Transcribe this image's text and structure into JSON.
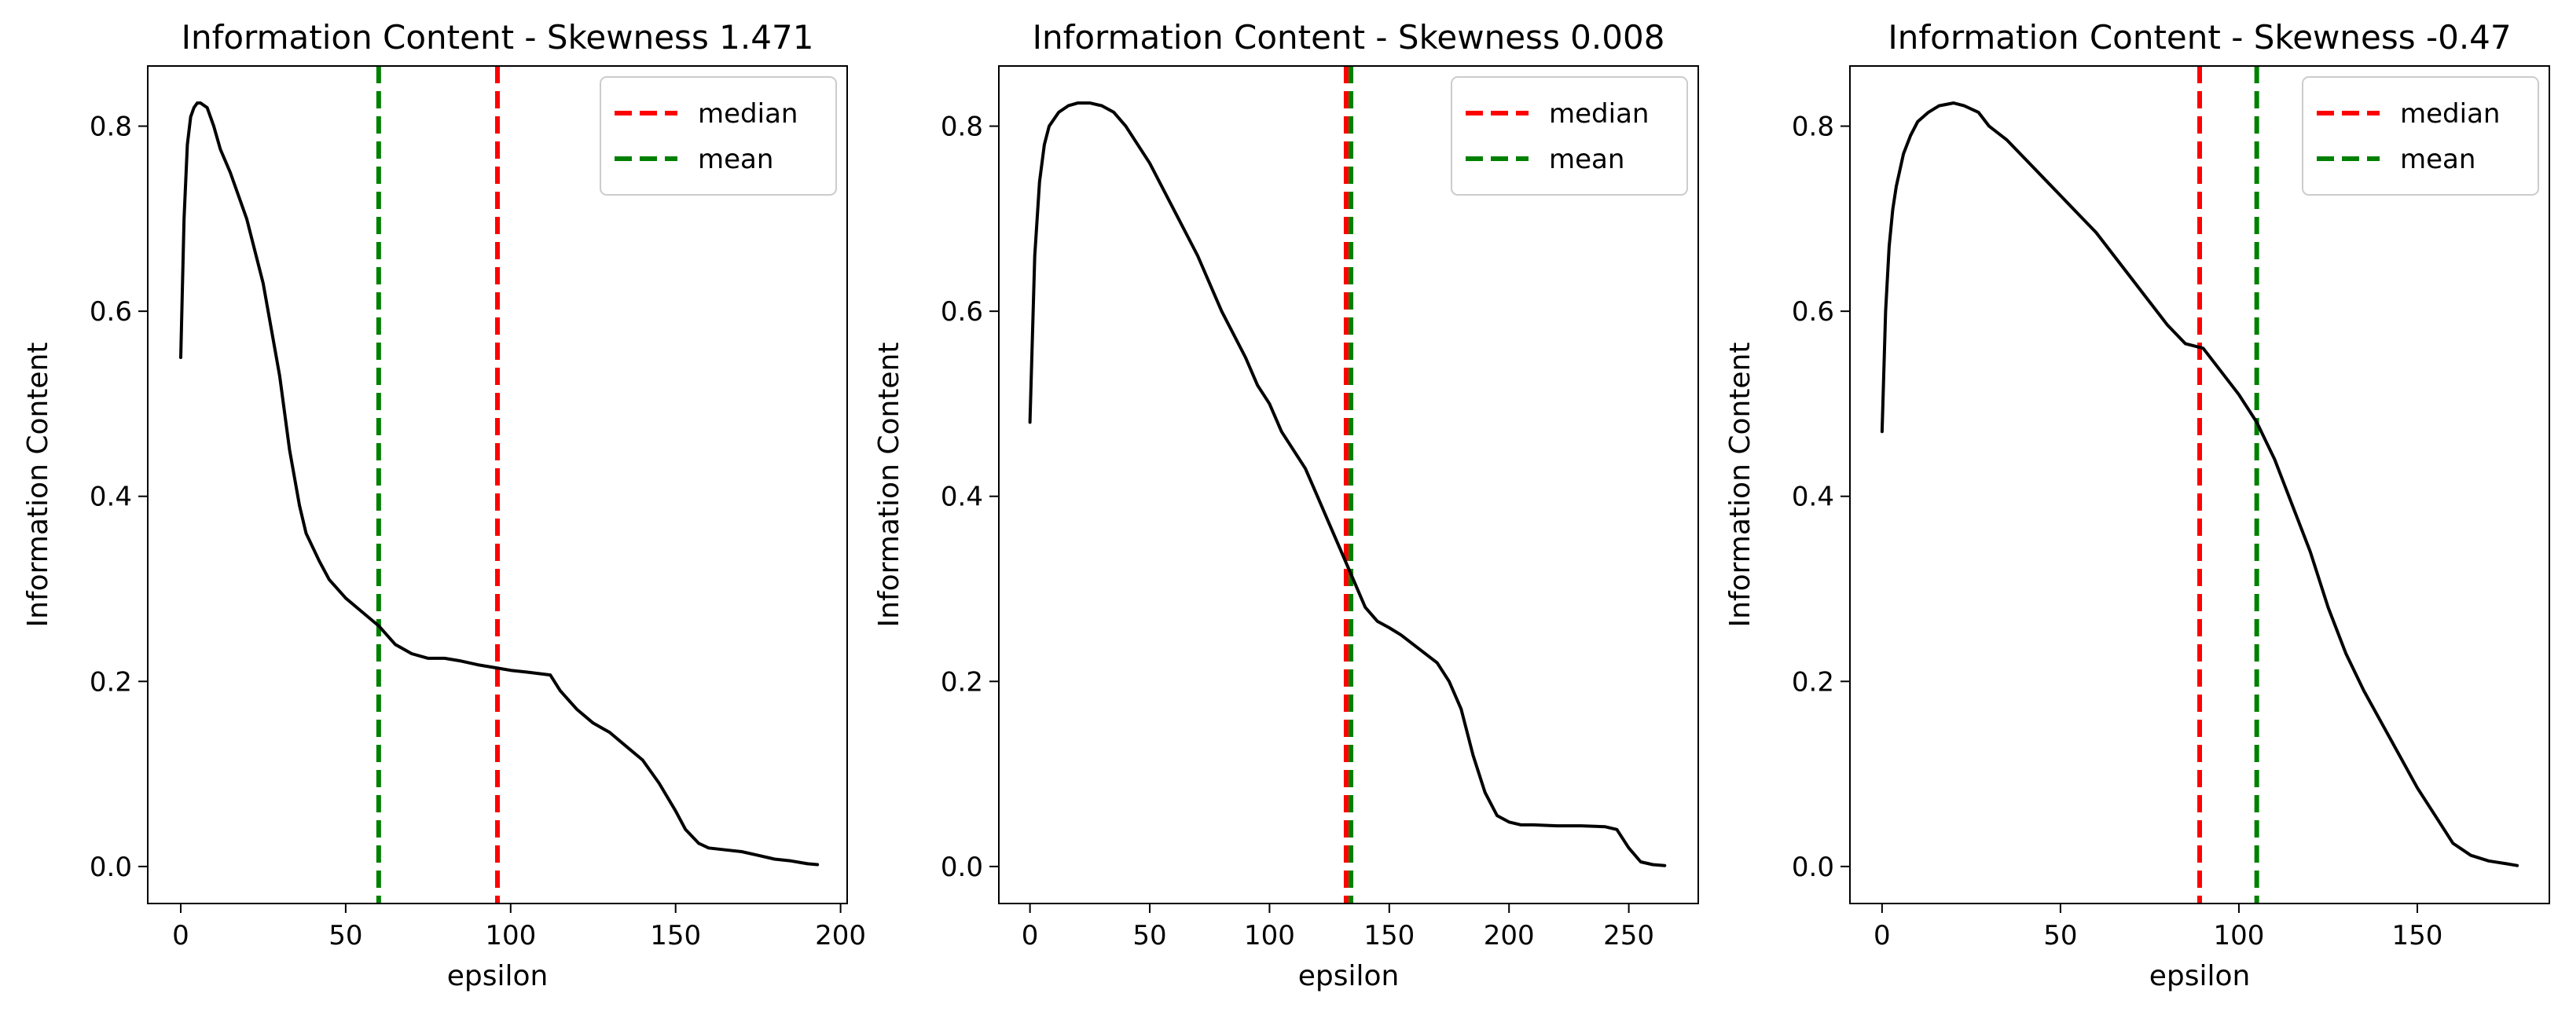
{
  "chart_data": [
    {
      "type": "line",
      "title": "Information Content - Skewness 1.471",
      "xlabel": "epsilon",
      "ylabel": "Information Content",
      "xlim": [
        -10,
        202
      ],
      "ylim": [
        -0.04,
        0.865
      ],
      "xticks": [
        0,
        50,
        100,
        150,
        200
      ],
      "yticks": [
        0.0,
        0.2,
        0.4,
        0.6,
        0.8
      ],
      "legend": {
        "position": "upper right",
        "entries": [
          "median",
          "mean"
        ]
      },
      "median": 96,
      "mean": 60,
      "series": [
        {
          "name": "Information Content",
          "color": "#000000",
          "x": [
            0,
            1,
            2,
            3,
            4,
            5,
            6,
            8,
            10,
            12,
            15,
            20,
            25,
            30,
            33,
            36,
            38,
            42,
            45,
            50,
            55,
            60,
            65,
            70,
            75,
            80,
            85,
            90,
            95,
            100,
            105,
            112,
            115,
            120,
            125,
            130,
            135,
            140,
            145,
            150,
            153,
            157,
            160,
            165,
            170,
            175,
            180,
            185,
            190,
            193
          ],
          "y": [
            0.55,
            0.7,
            0.78,
            0.81,
            0.82,
            0.825,
            0.825,
            0.82,
            0.8,
            0.775,
            0.75,
            0.7,
            0.63,
            0.53,
            0.45,
            0.39,
            0.36,
            0.33,
            0.31,
            0.29,
            0.275,
            0.26,
            0.24,
            0.23,
            0.225,
            0.225,
            0.222,
            0.218,
            0.215,
            0.212,
            0.21,
            0.207,
            0.19,
            0.17,
            0.155,
            0.145,
            0.13,
            0.115,
            0.09,
            0.06,
            0.04,
            0.025,
            0.02,
            0.018,
            0.016,
            0.012,
            0.008,
            0.006,
            0.003,
            0.002
          ]
        }
      ]
    },
    {
      "type": "line",
      "title": "Information Content - Skewness 0.008",
      "xlabel": "epsilon",
      "ylabel": "Information Content",
      "xlim": [
        -13,
        279
      ],
      "ylim": [
        -0.04,
        0.865
      ],
      "xticks": [
        0,
        50,
        100,
        150,
        200,
        250
      ],
      "yticks": [
        0.0,
        0.2,
        0.4,
        0.6,
        0.8
      ],
      "legend": {
        "position": "upper right",
        "entries": [
          "median",
          "mean"
        ]
      },
      "median": 132,
      "mean": 134,
      "series": [
        {
          "name": "Information Content",
          "color": "#000000",
          "x": [
            0,
            2,
            4,
            6,
            8,
            12,
            16,
            20,
            25,
            30,
            35,
            40,
            50,
            60,
            70,
            80,
            90,
            95,
            100,
            105,
            110,
            115,
            120,
            125,
            130,
            135,
            140,
            145,
            150,
            155,
            160,
            170,
            175,
            180,
            185,
            190,
            195,
            200,
            205,
            210,
            220,
            230,
            240,
            245,
            250,
            255,
            260,
            265
          ],
          "y": [
            0.48,
            0.66,
            0.74,
            0.78,
            0.8,
            0.815,
            0.822,
            0.825,
            0.825,
            0.822,
            0.815,
            0.8,
            0.76,
            0.71,
            0.66,
            0.6,
            0.55,
            0.52,
            0.5,
            0.47,
            0.45,
            0.43,
            0.4,
            0.37,
            0.34,
            0.31,
            0.28,
            0.265,
            0.258,
            0.25,
            0.24,
            0.22,
            0.2,
            0.17,
            0.12,
            0.08,
            0.055,
            0.048,
            0.045,
            0.045,
            0.044,
            0.044,
            0.043,
            0.04,
            0.02,
            0.005,
            0.002,
            0.001
          ]
        }
      ]
    },
    {
      "type": "line",
      "title": "Information Content - Skewness -0.47",
      "xlabel": "epsilon",
      "ylabel": "Information Content",
      "xlim": [
        -9,
        187
      ],
      "ylim": [
        -0.04,
        0.865
      ],
      "xticks": [
        0,
        50,
        100,
        150
      ],
      "yticks": [
        0.0,
        0.2,
        0.4,
        0.6,
        0.8
      ],
      "legend": {
        "position": "upper right",
        "entries": [
          "median",
          "mean"
        ]
      },
      "median": 89,
      "mean": 105,
      "series": [
        {
          "name": "Information Content",
          "color": "#000000",
          "x": [
            0,
            1,
            2,
            3,
            4,
            6,
            8,
            10,
            13,
            16,
            20,
            23,
            27,
            30,
            35,
            40,
            45,
            50,
            55,
            60,
            65,
            70,
            75,
            80,
            85,
            90,
            95,
            100,
            105,
            110,
            115,
            120,
            125,
            130,
            135,
            140,
            145,
            150,
            155,
            160,
            165,
            170,
            175,
            178
          ],
          "y": [
            0.47,
            0.6,
            0.67,
            0.71,
            0.735,
            0.77,
            0.79,
            0.805,
            0.815,
            0.822,
            0.825,
            0.822,
            0.815,
            0.8,
            0.785,
            0.765,
            0.745,
            0.725,
            0.705,
            0.685,
            0.66,
            0.635,
            0.61,
            0.585,
            0.565,
            0.56,
            0.535,
            0.51,
            0.48,
            0.44,
            0.39,
            0.34,
            0.28,
            0.23,
            0.19,
            0.155,
            0.12,
            0.085,
            0.055,
            0.025,
            0.012,
            0.006,
            0.003,
            0.001
          ]
        }
      ]
    }
  ],
  "colors": {
    "median": "#ff0000",
    "mean": "#008000",
    "curve": "#000000"
  }
}
